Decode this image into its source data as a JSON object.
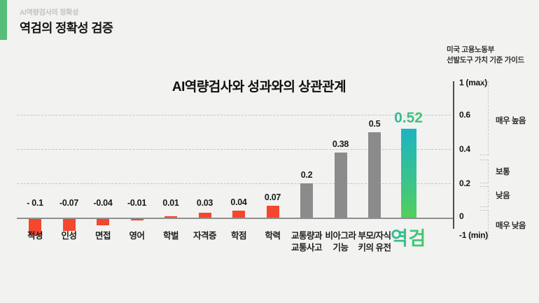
{
  "header": {
    "eyebrow": "AI역량검사의 정확성",
    "title": "역검의 정확성 검증"
  },
  "chart_data": {
    "type": "bar",
    "title": "AI역량검사와 성과와의 상관관계",
    "categories": [
      [
        "적성"
      ],
      [
        "인성"
      ],
      [
        "면접"
      ],
      [
        "영어"
      ],
      [
        "학벌"
      ],
      [
        "자격증"
      ],
      [
        "학점"
      ],
      [
        "학력"
      ],
      [
        "교통량과",
        "교통사고"
      ],
      [
        "비아그라",
        "기능"
      ],
      [
        "부모/자식",
        "키의 유전"
      ],
      [
        "역검"
      ]
    ],
    "values": [
      -0.1,
      -0.07,
      -0.04,
      -0.01,
      0.01,
      0.03,
      0.04,
      0.07,
      0.2,
      0.38,
      0.5,
      0.52
    ],
    "value_labels": [
      "- 0.1",
      "-0.07",
      "-0.04",
      "-0.01",
      "0.01",
      "0.03",
      "0.04",
      "0.07",
      "0.2",
      "0.38",
      "0.5",
      "0.52"
    ],
    "styles": [
      "red",
      "red",
      "red",
      "red",
      "red",
      "red",
      "red",
      "red",
      "gray",
      "gray",
      "gray",
      "gradient"
    ],
    "highlight_index": 11,
    "ylim": [
      -1,
      1
    ],
    "gridline_values": [
      0.2,
      0.4,
      0.6
    ],
    "colors": {
      "red": "#F4472E",
      "gray": "#8B8B8B",
      "gradient_top": "#1EB4C2",
      "gradient_bottom": "#53CF5C",
      "accent_green": "#56BE77",
      "background": "#F2F2F1"
    },
    "right_axis": {
      "note": [
        "미국 고용노동부",
        "선발도구 가치 기준 가이드"
      ],
      "ticks": [
        "1 (max)",
        "0.6",
        "0.4",
        "0.2",
        "0",
        "-1 (min)"
      ],
      "ranges": [
        "매우 높음",
        "보통",
        "낮음",
        "매우 낮음"
      ]
    }
  }
}
